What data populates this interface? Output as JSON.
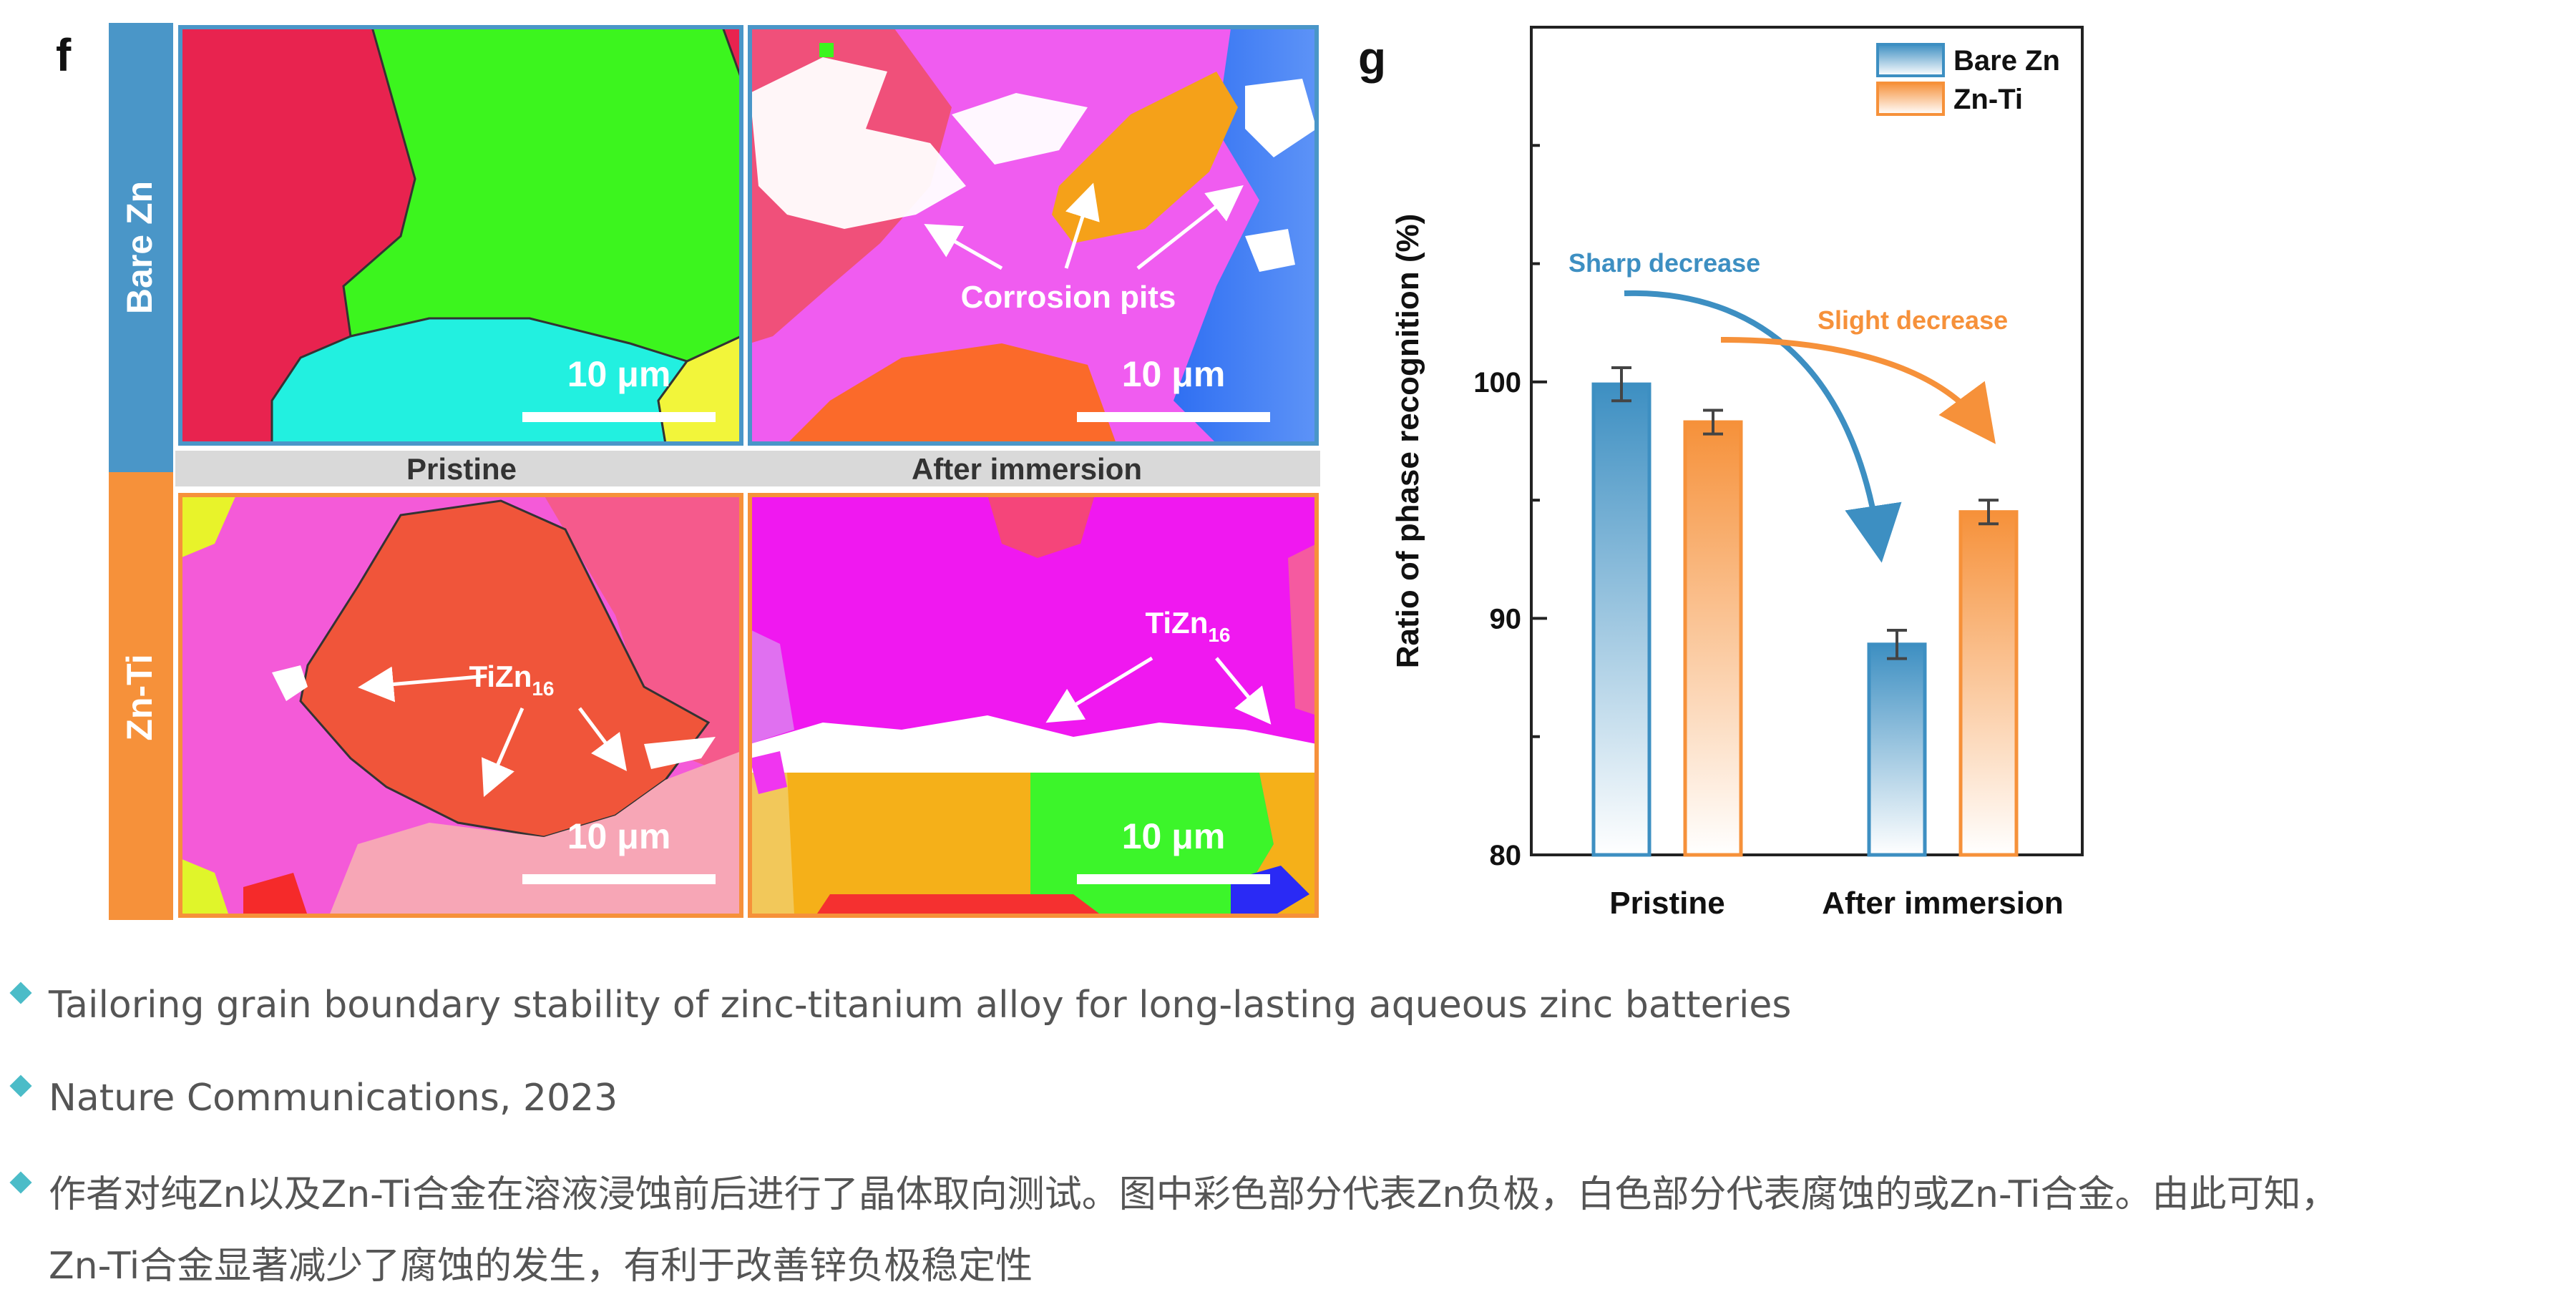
{
  "panel_f": {
    "letter": "f",
    "row_labels": [
      "Bare Zn",
      "Zn-Ti"
    ],
    "col_labels": [
      "Pristine",
      "After immersion"
    ],
    "scale_bar": "10 μm",
    "annotations": {
      "corrosion": "Corrosion pits",
      "tizn_base": "TiZn",
      "tizn_sub": "16"
    }
  },
  "panel_g": {
    "letter": "g"
  },
  "chart_data": {
    "type": "bar",
    "categories": [
      "Pristine",
      "After immersion"
    ],
    "series": [
      {
        "name": "Bare Zn",
        "values": [
          99.9,
          88.9
        ],
        "errors": [
          0.7,
          0.6
        ],
        "color": "#3d8fc2"
      },
      {
        "name": "Zn-Ti",
        "values": [
          98.3,
          94.5
        ],
        "errors": [
          0.5,
          0.5
        ],
        "color": "#f6913a"
      }
    ],
    "ylabel": "Ratio of phase recognition (%)",
    "xlabel": "",
    "ylim": [
      80,
      115
    ],
    "yticks": [
      80,
      90,
      100
    ],
    "legend": "top-right",
    "annotations": [
      {
        "text": "Sharp decrease",
        "color": "#3d8fc2"
      },
      {
        "text": "Slight decrease",
        "color": "#f6913a"
      }
    ]
  },
  "bullets": [
    "Tailoring grain boundary stability of zinc-titanium alloy for long-lasting aqueous zinc batteries",
    "Nature Communications, 2023",
    "作者对纯Zn以及Zn-Ti合金在溶液浸蚀前后进行了晶体取向测试。图中彩色部分代表Zn负极，白色部分代表腐蚀的或Zn-Ti合金。由此可知，\nZn-Ti合金显著减少了腐蚀的发生，有利于改善锌负极稳定性"
  ]
}
